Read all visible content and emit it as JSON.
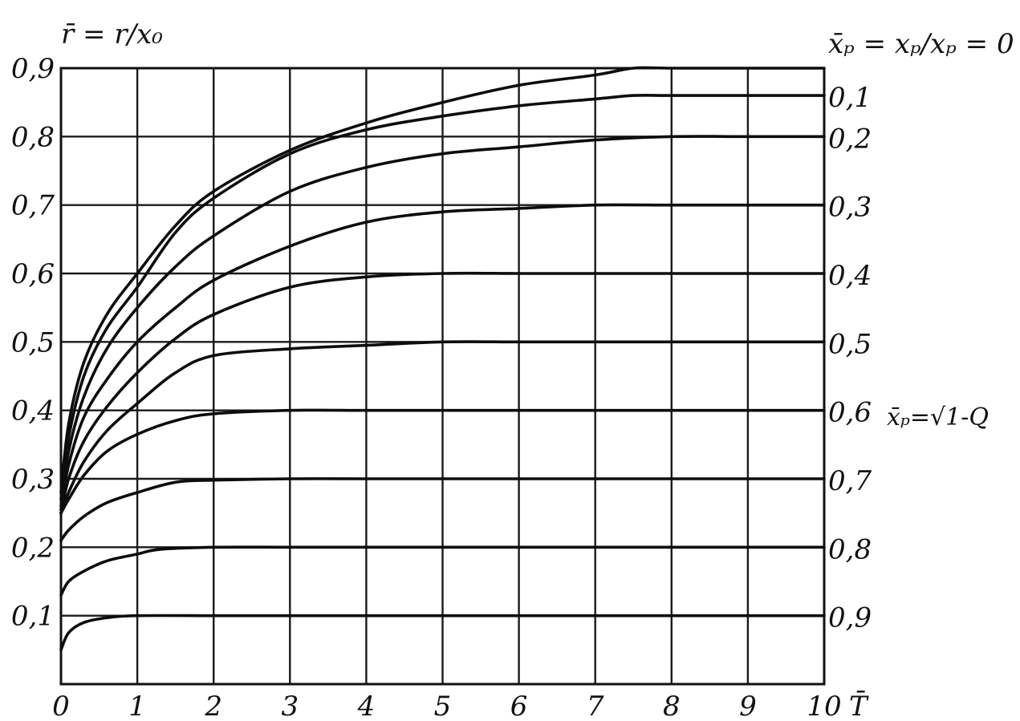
{
  "chart_data": {
    "type": "line",
    "title": "",
    "ylabel": "r̄ = r/x₀",
    "xlabel": "T̄",
    "xlim": [
      0,
      10
    ],
    "ylim": [
      0,
      0.9
    ],
    "grid": true,
    "x_ticks": [
      {
        "value": 0,
        "label": "0"
      },
      {
        "value": 1,
        "label": "1"
      },
      {
        "value": 2,
        "label": "2"
      },
      {
        "value": 3,
        "label": "3"
      },
      {
        "value": 4,
        "label": "4"
      },
      {
        "value": 5,
        "label": "5"
      },
      {
        "value": 6,
        "label": "6"
      },
      {
        "value": 7,
        "label": "7"
      },
      {
        "value": 8,
        "label": "8"
      },
      {
        "value": 9,
        "label": "9"
      },
      {
        "value": 10,
        "label": "10"
      }
    ],
    "y_ticks": [
      {
        "value": 0.1,
        "label": "0,1"
      },
      {
        "value": 0.2,
        "label": "0,2"
      },
      {
        "value": 0.3,
        "label": "0,3"
      },
      {
        "value": 0.4,
        "label": "0,4"
      },
      {
        "value": 0.5,
        "label": "0,5"
      },
      {
        "value": 0.6,
        "label": "0,6"
      },
      {
        "value": 0.7,
        "label": "0,7"
      },
      {
        "value": 0.8,
        "label": "0,8"
      },
      {
        "value": 0.9,
        "label": "0,9"
      }
    ],
    "curve_label_header": "x̄ₚ = xₚ/xₚ = 0",
    "annotation": "x̄ₚ=√1-Q",
    "series": [
      {
        "label": "0",
        "x": [
          0,
          0.1,
          0.3,
          0.6,
          1,
          1.5,
          2,
          3,
          4,
          5,
          6,
          7,
          7.5,
          8,
          9,
          10
        ],
        "y": [
          0.28,
          0.38,
          0.47,
          0.54,
          0.6,
          0.67,
          0.72,
          0.78,
          0.82,
          0.85,
          0.875,
          0.89,
          0.9,
          0.9,
          0.9,
          0.9
        ]
      },
      {
        "label": "0,1",
        "x": [
          0,
          0.1,
          0.3,
          0.6,
          1,
          1.5,
          2,
          3,
          4,
          5,
          6,
          7,
          7.5,
          8,
          9,
          10
        ],
        "y": [
          0.27,
          0.36,
          0.45,
          0.52,
          0.58,
          0.66,
          0.71,
          0.775,
          0.81,
          0.83,
          0.845,
          0.855,
          0.86,
          0.86,
          0.86,
          0.86
        ]
      },
      {
        "label": "0,2",
        "x": [
          0,
          0.1,
          0.3,
          0.6,
          1,
          1.5,
          2,
          3,
          4,
          5,
          6,
          7,
          8,
          9,
          10
        ],
        "y": [
          0.26,
          0.34,
          0.42,
          0.49,
          0.55,
          0.61,
          0.655,
          0.72,
          0.755,
          0.775,
          0.785,
          0.795,
          0.8,
          0.8,
          0.8
        ]
      },
      {
        "label": "0,3",
        "x": [
          0,
          0.1,
          0.3,
          0.6,
          1,
          1.5,
          2,
          3,
          4,
          5,
          6,
          7,
          8,
          9,
          10
        ],
        "y": [
          0.255,
          0.32,
          0.39,
          0.445,
          0.5,
          0.55,
          0.59,
          0.64,
          0.675,
          0.69,
          0.695,
          0.7,
          0.7,
          0.7,
          0.7
        ]
      },
      {
        "label": "0,4",
        "x": [
          0,
          0.1,
          0.3,
          0.6,
          1,
          1.5,
          2,
          3,
          4,
          5,
          6,
          7,
          8,
          9,
          10
        ],
        "y": [
          0.25,
          0.3,
          0.355,
          0.405,
          0.455,
          0.505,
          0.54,
          0.58,
          0.595,
          0.6,
          0.6,
          0.6,
          0.6,
          0.6,
          0.6
        ]
      },
      {
        "label": "0,5",
        "x": [
          0,
          0.1,
          0.3,
          0.6,
          1,
          1.5,
          2,
          3,
          4,
          5,
          6,
          7,
          8,
          9,
          10
        ],
        "y": [
          0.25,
          0.28,
          0.325,
          0.37,
          0.41,
          0.455,
          0.48,
          0.49,
          0.495,
          0.5,
          0.5,
          0.5,
          0.5,
          0.5,
          0.5
        ]
      },
      {
        "label": "0,6",
        "x": [
          0,
          0.1,
          0.3,
          0.6,
          1,
          1.5,
          2,
          3,
          4,
          5,
          6,
          7,
          8,
          9,
          10
        ],
        "y": [
          0.25,
          0.27,
          0.305,
          0.34,
          0.365,
          0.385,
          0.395,
          0.4,
          0.4,
          0.4,
          0.4,
          0.4,
          0.4,
          0.4,
          0.4
        ]
      },
      {
        "label": "0,7",
        "x": [
          0,
          0.1,
          0.3,
          0.6,
          1,
          1.5,
          2,
          3,
          4,
          5,
          6,
          7,
          8,
          9,
          10
        ],
        "y": [
          0.21,
          0.225,
          0.245,
          0.265,
          0.28,
          0.295,
          0.298,
          0.3,
          0.3,
          0.3,
          0.3,
          0.3,
          0.3,
          0.3,
          0.3
        ]
      },
      {
        "label": "0,8",
        "x": [
          0,
          0.1,
          0.3,
          0.6,
          1,
          1.3,
          2,
          3,
          4,
          5,
          6,
          7,
          8,
          9,
          10
        ],
        "y": [
          0.13,
          0.15,
          0.165,
          0.18,
          0.19,
          0.197,
          0.2,
          0.2,
          0.2,
          0.2,
          0.2,
          0.2,
          0.2,
          0.2,
          0.2
        ]
      },
      {
        "label": "0,9",
        "x": [
          0,
          0.1,
          0.3,
          0.6,
          1,
          2,
          3,
          4,
          5,
          6,
          7,
          8,
          9,
          10
        ],
        "y": [
          0.05,
          0.075,
          0.09,
          0.097,
          0.1,
          0.1,
          0.1,
          0.1,
          0.1,
          0.1,
          0.1,
          0.1,
          0.1,
          0.1
        ]
      }
    ]
  }
}
